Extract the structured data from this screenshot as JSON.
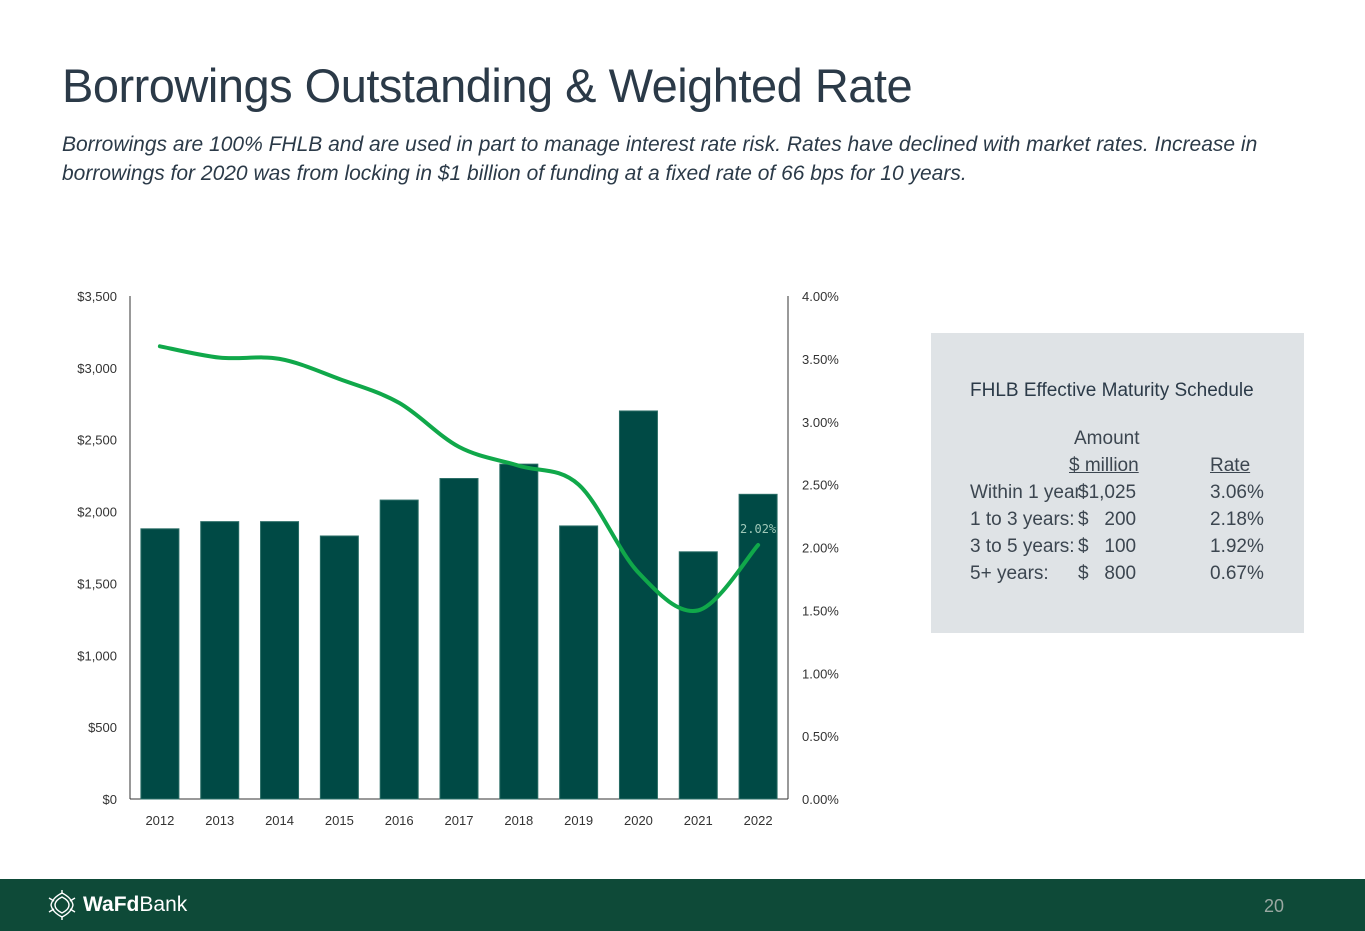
{
  "title": "Borrowings Outstanding & Weighted Rate",
  "subtitle": "Borrowings are 100% FHLB and are used in part to manage interest rate risk.  Rates have declined with market rates.  Increase in borrowings for 2020 was from locking in $1 billion of funding at a fixed rate of 66 bps for 10 years.",
  "colors": {
    "bar": "#004a45",
    "line": "#10a84a",
    "footer": "#0e4a38",
    "panel": "#dfe3e6",
    "text": "#2b3a48"
  },
  "chart_data": {
    "type": "bar",
    "title": "",
    "categories": [
      "2012",
      "2013",
      "2014",
      "2015",
      "2016",
      "2017",
      "2018",
      "2019",
      "2020",
      "2021",
      "2022"
    ],
    "series": [
      {
        "name": "Borrowings Outstanding ($ million)",
        "type": "bar",
        "axis": "left",
        "values": [
          1880,
          1930,
          1930,
          1830,
          2080,
          2230,
          2330,
          1900,
          2700,
          1720,
          2120
        ]
      },
      {
        "name": "Weighted Rate",
        "type": "line",
        "axis": "right",
        "values": [
          3.6,
          3.51,
          3.5,
          3.34,
          3.15,
          2.8,
          2.65,
          2.5,
          1.8,
          1.5,
          2.02
        ],
        "end_label": "2.02%"
      }
    ],
    "left_axis": {
      "ylim": [
        0,
        3500
      ],
      "ticks": [
        "$0",
        "$500",
        "$1,000",
        "$1,500",
        "$2,000",
        "$2,500",
        "$3,000",
        "$3,500"
      ]
    },
    "right_axis": {
      "ylim": [
        0,
        4.0
      ],
      "ticks": [
        "0.00%",
        "0.50%",
        "1.00%",
        "1.50%",
        "2.00%",
        "2.50%",
        "3.00%",
        "3.50%",
        "4.00%"
      ]
    },
    "xlabel": "",
    "ylabel": "",
    "grid": false
  },
  "maturity": {
    "title": "FHLB Effective Maturity Schedule",
    "header_amount_top": "Amount",
    "header_amount": "$ million",
    "header_rate": "Rate",
    "rows": [
      {
        "label": "Within 1 year:",
        "amount": "$1,025",
        "rate": "3.06%"
      },
      {
        "label": "1 to 3 years:",
        "amount": "$   200",
        "rate": "2.18%"
      },
      {
        "label": "3 to 5 years:",
        "amount": "$   100",
        "rate": "1.92%"
      },
      {
        "label": "5+ years:",
        "amount": "$   800",
        "rate": "0.67%"
      }
    ]
  },
  "footer": {
    "logo_bold": "WaFd",
    "logo_rest": "Bank",
    "page_number": "20",
    "logo_icon": "wafd-leaf-icon"
  }
}
